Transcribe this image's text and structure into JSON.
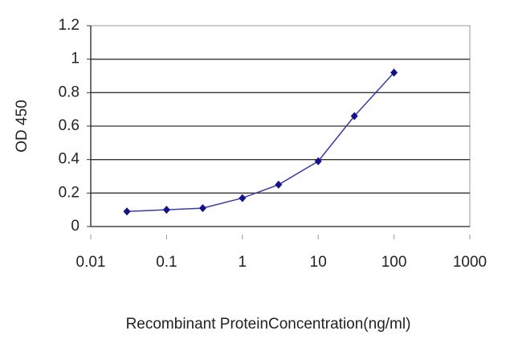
{
  "chart_data": {
    "type": "line",
    "x_label": "Recombinant ProteinConcentration(ng/ml)",
    "y_label": "OD 450",
    "x": [
      0.03,
      0.1,
      0.3,
      1,
      3,
      10,
      30,
      100
    ],
    "series": [
      {
        "color": "#3a3aa8",
        "values": [
          0.09,
          0.1,
          0.11,
          0.17,
          0.25,
          0.39,
          0.66,
          0.92
        ]
      }
    ],
    "xlim": [
      0.01,
      1000
    ],
    "xticks": [
      0.01,
      0.1,
      1,
      10,
      100,
      1000
    ],
    "xscale": "log",
    "ylim": [
      0,
      1.2
    ],
    "yticks": [
      0,
      0.2,
      0.4,
      0.6,
      0.8,
      1,
      1.2
    ],
    "grid": true
  }
}
